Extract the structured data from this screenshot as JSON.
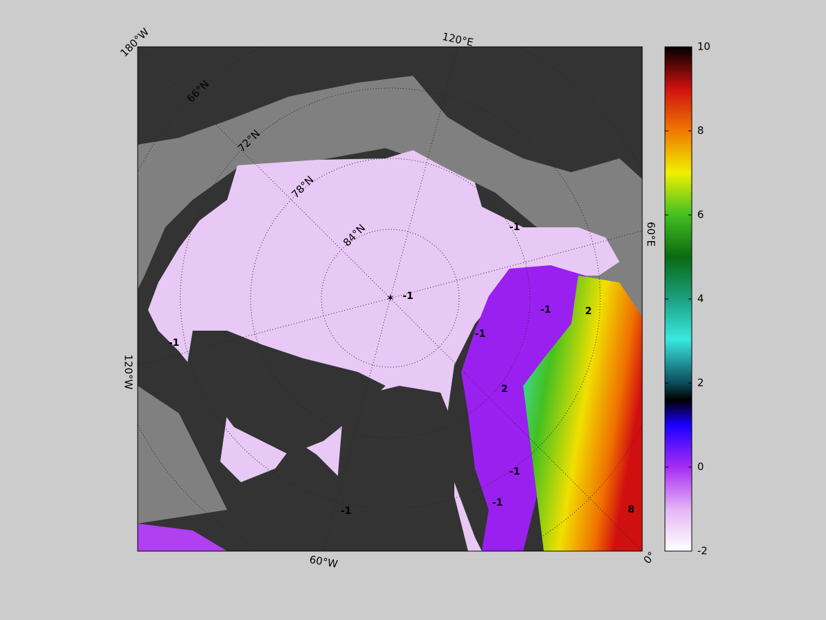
{
  "map": {
    "longitude_labels": [
      "180°W",
      "120°E",
      "60°E",
      "0°",
      "60°W",
      "120°W"
    ],
    "latitude_labels": [
      "66°N",
      "72°N",
      "78°N",
      "84°N"
    ],
    "contour_labels": [
      "-1",
      "-1",
      "-1",
      "-1",
      "-1",
      "-1",
      "-1",
      "2",
      "2",
      "8",
      "-1"
    ]
  },
  "colorbar": {
    "lim": [
      -2,
      10
    ],
    "ticks": [
      -2,
      0,
      2,
      4,
      6,
      8,
      10
    ]
  }
}
